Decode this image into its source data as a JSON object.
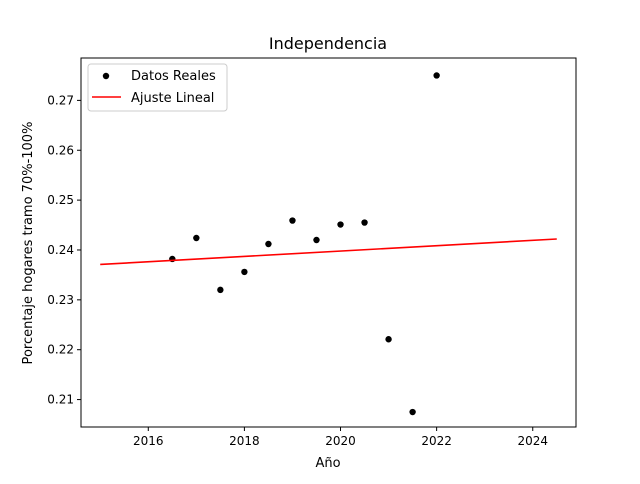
{
  "chart_data": {
    "type": "scatter",
    "title": "Independencia",
    "xlabel": "Año",
    "ylabel": "Porcentaje hogares tramo 70%-100%",
    "xlim": [
      2014.6,
      2024.9
    ],
    "ylim": [
      0.2045,
      0.2785
    ],
    "xticks": [
      2016,
      2018,
      2020,
      2022,
      2024
    ],
    "xtick_labels": [
      "2016",
      "2018",
      "2020",
      "2022",
      "2024"
    ],
    "yticks": [
      0.21,
      0.22,
      0.23,
      0.24,
      0.25,
      0.26,
      0.27
    ],
    "ytick_labels": [
      "0.21",
      "0.22",
      "0.23",
      "0.24",
      "0.25",
      "0.26",
      "0.27"
    ],
    "grid": false,
    "legend": {
      "position": "top-left",
      "entries": [
        "Datos Reales",
        "Ajuste Lineal"
      ]
    },
    "series": [
      {
        "name": "Datos Reales",
        "kind": "scatter",
        "color": "#000000",
        "x": [
          2016.5,
          2017.0,
          2017.5,
          2018.0,
          2018.5,
          2019.0,
          2019.5,
          2020.0,
          2020.5,
          2021.0,
          2021.5,
          2022.0
        ],
        "y": [
          0.2382,
          0.2424,
          0.232,
          0.2356,
          0.2412,
          0.2459,
          0.242,
          0.2451,
          0.2455,
          0.2221,
          0.2075,
          0.275
        ]
      },
      {
        "name": "Ajuste Lineal",
        "kind": "line",
        "color": "#ff0000",
        "x": [
          2015.0,
          2024.5
        ],
        "y": [
          0.2371,
          0.2422
        ]
      }
    ]
  }
}
